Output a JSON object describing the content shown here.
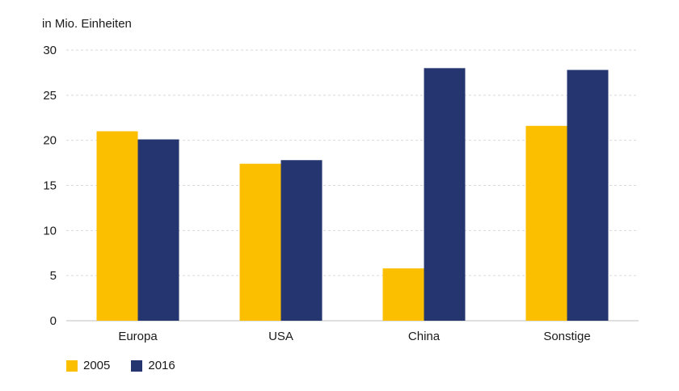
{
  "chart_data": {
    "type": "bar",
    "ylabel": "in Mio. Einheiten",
    "categories": [
      "Europa",
      "USA",
      "China",
      "Sonstige"
    ],
    "series": [
      {
        "name": "2005",
        "color": "#fbbf00",
        "values": [
          21.0,
          17.4,
          5.8,
          21.6
        ]
      },
      {
        "name": "2016",
        "color": "#253570",
        "values": [
          20.1,
          17.8,
          28.0,
          27.8
        ]
      }
    ],
    "ylim": [
      0,
      30
    ],
    "yticks": [
      0,
      5,
      10,
      15,
      20,
      25,
      30
    ],
    "grid": true,
    "legend": "bottom-left"
  }
}
